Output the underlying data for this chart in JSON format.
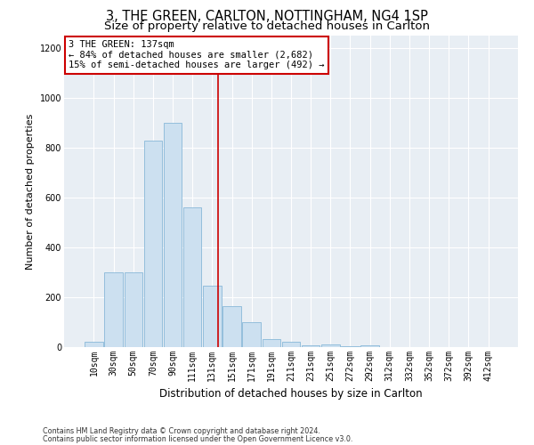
{
  "title1": "3, THE GREEN, CARLTON, NOTTINGHAM, NG4 1SP",
  "title2": "Size of property relative to detached houses in Carlton",
  "xlabel": "Distribution of detached houses by size in Carlton",
  "ylabel": "Number of detached properties",
  "categories": [
    "10sqm",
    "30sqm",
    "50sqm",
    "70sqm",
    "90sqm",
    "111sqm",
    "131sqm",
    "151sqm",
    "171sqm",
    "191sqm",
    "211sqm",
    "231sqm",
    "251sqm",
    "272sqm",
    "292sqm",
    "312sqm",
    "332sqm",
    "352sqm",
    "372sqm",
    "392sqm",
    "412sqm"
  ],
  "bar_heights": [
    20,
    300,
    300,
    830,
    900,
    560,
    245,
    165,
    100,
    32,
    22,
    8,
    10,
    5,
    8,
    0,
    0,
    0,
    0,
    0,
    0
  ],
  "bar_color": "#cce0f0",
  "bar_edgecolor": "#88b8d8",
  "vline_color": "#cc0000",
  "vline_index": 6.3,
  "annotation_text": "3 THE GREEN: 137sqm\n← 84% of detached houses are smaller (2,682)\n15% of semi-detached houses are larger (492) →",
  "ylim": [
    0,
    1250
  ],
  "yticks": [
    0,
    200,
    400,
    600,
    800,
    1000,
    1200
  ],
  "footnote1": "Contains HM Land Registry data © Crown copyright and database right 2024.",
  "footnote2": "Contains public sector information licensed under the Open Government Licence v3.0.",
  "title1_fontsize": 10.5,
  "title2_fontsize": 9.5,
  "ylabel_fontsize": 8,
  "xlabel_fontsize": 8.5,
  "tick_fontsize": 7,
  "annot_fontsize": 7.5,
  "footnote_fontsize": 5.8,
  "bg_color": "#e8eef4",
  "grid_color": "#ffffff"
}
